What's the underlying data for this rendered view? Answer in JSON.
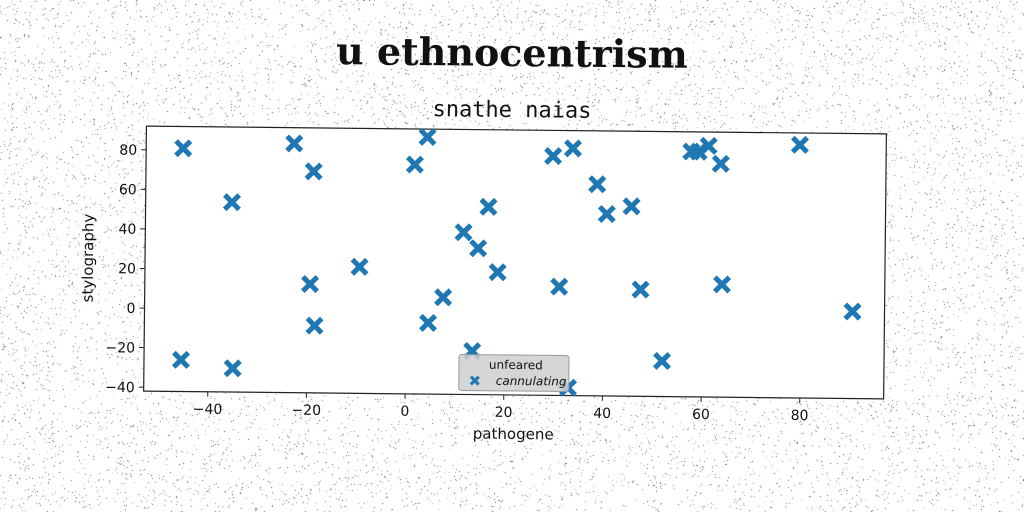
{
  "title": "u ethnocentrism",
  "chart_data": {
    "type": "scatter",
    "title": "snathe naias",
    "xlabel": "pathogene",
    "ylabel": "stylography",
    "xlim": [
      -53,
      97
    ],
    "ylim": [
      -42,
      92
    ],
    "xticks": [
      -40,
      -20,
      0,
      20,
      40,
      60,
      80
    ],
    "yticks": [
      -40,
      -20,
      0,
      20,
      40,
      60,
      80
    ],
    "legend": {
      "placement": "lower-center",
      "title": "unfeared"
    },
    "series": [
      {
        "name": "cannulating",
        "color": "#1f77b4",
        "marker": "x-filled",
        "points": [
          [
            -45.5,
            81
          ],
          [
            -45.5,
            -26
          ],
          [
            -35.5,
            54
          ],
          [
            -35,
            -30
          ],
          [
            -23,
            84
          ],
          [
            -19,
            70
          ],
          [
            -19.5,
            13
          ],
          [
            -18.5,
            -8
          ],
          [
            -9.5,
            22
          ],
          [
            1.5,
            74
          ],
          [
            4,
            88
          ],
          [
            4.5,
            -6
          ],
          [
            7.5,
            7
          ],
          [
            11.5,
            40
          ],
          [
            14.5,
            32
          ],
          [
            16.5,
            53
          ],
          [
            18.5,
            20
          ],
          [
            13.5,
            -20
          ],
          [
            29.5,
            79
          ],
          [
            31,
            13
          ],
          [
            33.5,
            83
          ],
          [
            33,
            -38
          ],
          [
            38.5,
            65
          ],
          [
            40.5,
            50
          ],
          [
            45.5,
            54
          ],
          [
            47.5,
            12
          ],
          [
            52,
            -24
          ],
          [
            57.5,
            82
          ],
          [
            59,
            82
          ],
          [
            61,
            85
          ],
          [
            63.5,
            76
          ],
          [
            64,
            15
          ],
          [
            79.5,
            86
          ],
          [
            90.5,
            2
          ]
        ]
      }
    ]
  }
}
